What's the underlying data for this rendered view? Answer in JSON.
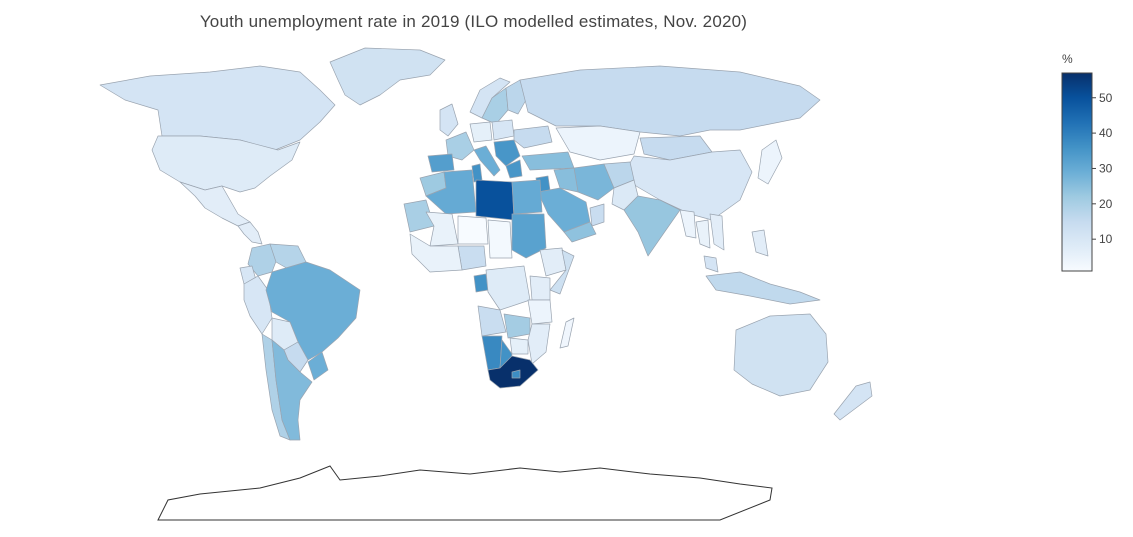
{
  "title": "Youth unemployment rate in 2019 (ILO modelled estimates, Nov. 2020)",
  "colorbar": {
    "title": "%",
    "ticks": [
      10,
      20,
      30,
      40,
      50
    ],
    "range": [
      1,
      57
    ],
    "colorscale": [
      "#f7fbff",
      "#deebf7",
      "#c6dbef",
      "#9ecae1",
      "#6baed6",
      "#4292c6",
      "#2171b5",
      "#08519c",
      "#08306b"
    ]
  },
  "chart_data": {
    "type": "choropleth",
    "title": "Youth unemployment rate in 2019 (ILO modelled estimates, Nov. 2020)",
    "legend": "%",
    "values_estimated": {
      "South Africa": 57,
      "Libya": 50,
      "Namibia": 38,
      "Botswana": 36,
      "Gabon": 36,
      "Tunisia": 36,
      "Spain": 33,
      "Greece": 35,
      "Algeria": 30,
      "Egypt": 30,
      "Morocco": 22,
      "Sudan": 32,
      "Saudi Arabia": 29,
      "Iran": 27,
      "Jordan": 36,
      "Brazil": 29,
      "Argentina": 26,
      "Colombia": 19,
      "Venezuela": 18,
      "Peru": 10,
      "Chile": 19,
      "Bolivia": 8,
      "Uruguay": 29,
      "Paraguay": 15,
      "Ecuador": 10,
      "Mexico": 7,
      "United States": 8,
      "Canada": 11,
      "Greenland": 12,
      "Russia": 15,
      "Kazakhstan": 4,
      "Mongolia": 15,
      "China": 10,
      "India": 23,
      "Pakistan": 9,
      "Afghanistan": 17,
      "Turkey": 25,
      "Iraq": 25,
      "Yemen": 24,
      "Oman": 14,
      "Mali": 5,
      "Niger": 1,
      "Chad": 2,
      "Mauritania": 20,
      "Nigeria": 14,
      "Ethiopia": 7,
      "Kenya": 7,
      "Somalia": 13,
      "DR Congo": 8,
      "Angola": 14,
      "Zambia": 21,
      "Zimbabwe": 6,
      "Mozambique": 7,
      "Madagascar": 3,
      "Lesotho": 37,
      "Eswatini": 47,
      "Tanzania": 4,
      "Australia": 12,
      "New Zealand": 11,
      "Indonesia": 16,
      "Philippines": 7,
      "Japan": 4,
      "Thailand": 5,
      "Myanmar": 4,
      "Vietnam": 7,
      "Malaysia": 11,
      "France": 20,
      "Italy": 29,
      "Germany": 6,
      "Poland": 10,
      "Ukraine": 15,
      "Sweden": 20,
      "Norway": 11,
      "Finland": 17,
      "United Kingdom": 11
    }
  }
}
